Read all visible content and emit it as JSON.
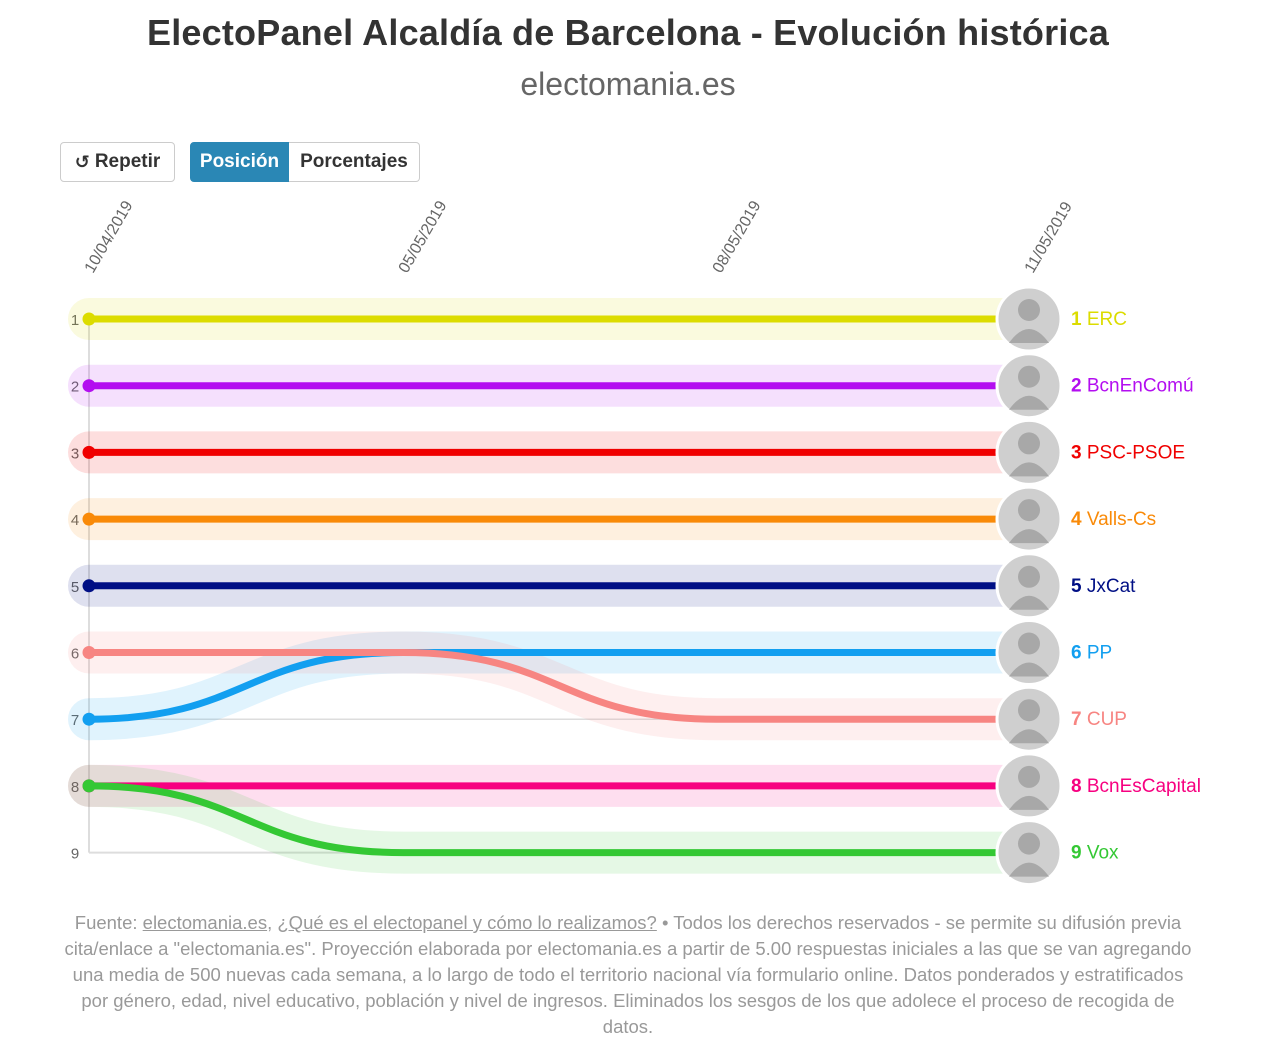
{
  "header": {
    "title": "ElectoPanel Alcaldía de Barcelona - Evolución histórica",
    "subtitle": "electomania.es"
  },
  "controls": {
    "replay_label": "Repetir",
    "replay_icon": "replay-icon",
    "position_label": "Posición",
    "percent_label": "Porcentajes",
    "active_view": "Posición"
  },
  "chart_data": {
    "type": "line",
    "y_axis": "rank",
    "y_ticks": [
      "1",
      "2",
      "3",
      "4",
      "5",
      "6",
      "7",
      "8",
      "9"
    ],
    "ylim": [
      1,
      9
    ],
    "y_reversed": true,
    "x": [
      "10/04/2019",
      "05/05/2019",
      "08/05/2019",
      "11/05/2019"
    ],
    "series": [
      {
        "name": "ERC",
        "color": "#dcdc00",
        "values": [
          1,
          1,
          1,
          1
        ]
      },
      {
        "name": "BcnEnComú",
        "color": "#b30ef0",
        "values": [
          2,
          2,
          2,
          2
        ]
      },
      {
        "name": "PSC-PSOE",
        "color": "#f00000",
        "values": [
          3,
          3,
          3,
          3
        ]
      },
      {
        "name": "Valls-Cs",
        "color": "#f98a08",
        "values": [
          4,
          4,
          4,
          4
        ]
      },
      {
        "name": "JxCat",
        "color": "#000f85",
        "values": [
          5,
          5,
          5,
          5
        ]
      },
      {
        "name": "PP",
        "color": "#129ff0",
        "values": [
          7,
          6,
          6,
          6
        ]
      },
      {
        "name": "CUP",
        "color": "#f78582",
        "values": [
          6,
          6,
          7,
          7
        ]
      },
      {
        "name": "BcnEsCapital",
        "color": "#f70080",
        "values": [
          8,
          8,
          8,
          8
        ]
      },
      {
        "name": "Vox",
        "color": "#34c834",
        "values": [
          8,
          9,
          9,
          9
        ]
      }
    ],
    "end_labels": [
      {
        "rank": "1",
        "name": "ERC"
      },
      {
        "rank": "2",
        "name": "BcnEnComú"
      },
      {
        "rank": "3",
        "name": "PSC-PSOE"
      },
      {
        "rank": "4",
        "name": "Valls-Cs"
      },
      {
        "rank": "5",
        "name": "JxCat"
      },
      {
        "rank": "6",
        "name": "PP"
      },
      {
        "rank": "7",
        "name": "CUP"
      },
      {
        "rank": "8",
        "name": "BcnEsCapital"
      },
      {
        "rank": "9",
        "name": "Vox"
      }
    ]
  },
  "footer": {
    "prefix": "Fuente: ",
    "link1": "electomania.es",
    "sep": ", ",
    "link2": "¿Qué es el electopanel y cómo lo realizamos?",
    "text": " • Todos los derechos reservados - se permite su difusión previa cita/enlace a \"electomania.es\". Proyección elaborada por electomania.es a partir de 5.00 respuestas iniciales a las que se van agregando una media de 500 nuevas cada semana, a lo largo de todo el territorio nacional vía formulario online. Datos ponderados y estratificados por género, edad, nivel educativo, población y nivel de ingresos. Eliminados los sesgos de los que adolece el proceso de recogida de datos."
  }
}
